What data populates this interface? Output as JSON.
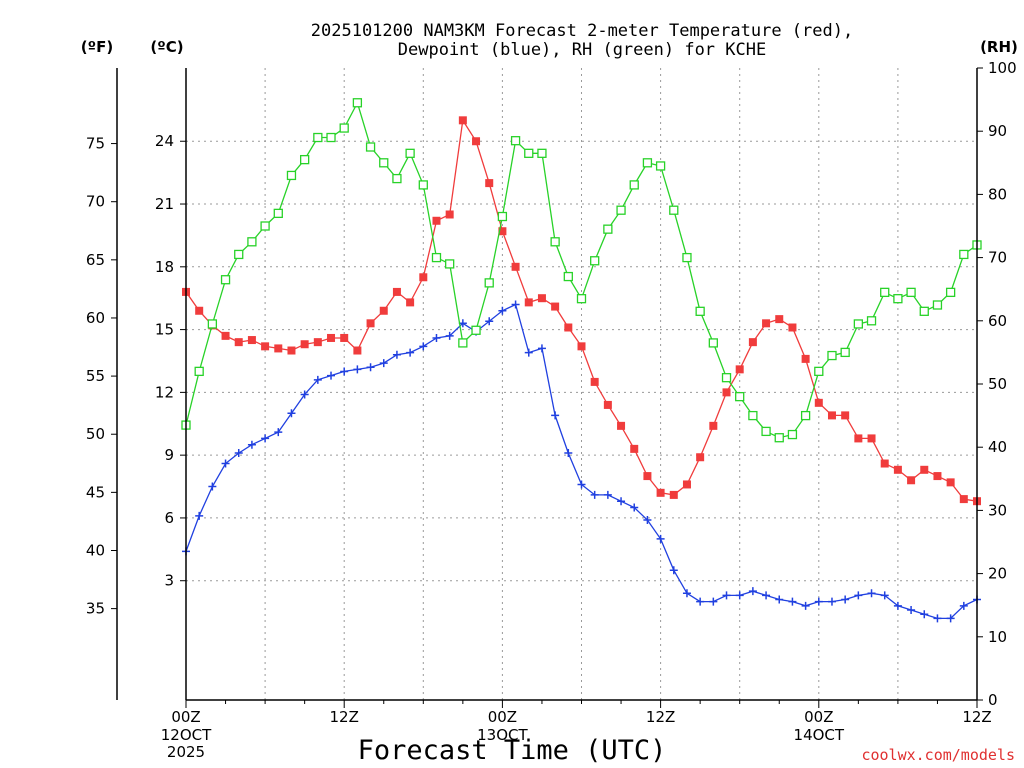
{
  "chart_data": {
    "type": "line",
    "title_line1": "2025101200 NAM3KM Forecast 2-meter Temperature (red),",
    "title_line2": "Dewpoint (blue), RH (green) for KCHE",
    "xlabel": "Forecast Time (UTC)",
    "credit": "coolwx.com/models",
    "units": {
      "fahrenheit": "(ºF)",
      "celsius": "(ºC)",
      "rh": "(RH)"
    },
    "x_forecast_hours": [
      0,
      1,
      2,
      3,
      4,
      5,
      6,
      7,
      8,
      9,
      10,
      11,
      12,
      13,
      14,
      15,
      16,
      17,
      18,
      19,
      20,
      21,
      22,
      23,
      24,
      25,
      26,
      27,
      28,
      29,
      30,
      31,
      32,
      33,
      34,
      35,
      36,
      37,
      38,
      39,
      40,
      41,
      42,
      43,
      44,
      45,
      46,
      47,
      48,
      49,
      50,
      51,
      52,
      53,
      54,
      55,
      56,
      57,
      58,
      59,
      60
    ],
    "xlim": [
      0,
      60
    ],
    "x_ticks": [
      {
        "hour": 0,
        "label": "00Z",
        "sub1": "12OCT",
        "sub2": "2025"
      },
      {
        "hour": 12,
        "label": "12Z",
        "sub1": "",
        "sub2": ""
      },
      {
        "hour": 24,
        "label": "00Z",
        "sub1": "13OCT",
        "sub2": ""
      },
      {
        "hour": 36,
        "label": "12Z",
        "sub1": "",
        "sub2": ""
      },
      {
        "hour": 48,
        "label": "00Z",
        "sub1": "14OCT",
        "sub2": ""
      },
      {
        "hour": 60,
        "label": "12Z",
        "sub1": "",
        "sub2": ""
      }
    ],
    "celsius_axis": {
      "ylim": [
        -2.7,
        27.5
      ],
      "ticks": [
        3,
        6,
        9,
        12,
        15,
        18,
        21,
        24
      ]
    },
    "fahrenheit_ticks": [
      35,
      40,
      45,
      50,
      55,
      60,
      65,
      70,
      75
    ],
    "rh_axis": {
      "ylim": [
        0,
        100
      ],
      "ticks": [
        0,
        10,
        20,
        30,
        40,
        50,
        60,
        70,
        80,
        90,
        100
      ]
    },
    "series": [
      {
        "name": "2-meter Temperature",
        "units": "C",
        "color": "#f03c3c",
        "marker": "filled-square",
        "values": [
          16.8,
          15.9,
          15.2,
          14.7,
          14.4,
          14.5,
          14.2,
          14.1,
          14.0,
          14.3,
          14.4,
          14.6,
          14.6,
          14.0,
          15.3,
          15.9,
          16.8,
          16.3,
          17.5,
          20.2,
          20.5,
          25.0,
          24.0,
          22.0,
          19.7,
          18.0,
          16.3,
          16.5,
          16.1,
          15.1,
          14.2,
          12.5,
          11.4,
          10.4,
          9.3,
          8.0,
          7.2,
          7.1,
          7.6,
          8.9,
          10.4,
          12.0,
          13.1,
          14.4,
          15.3,
          15.5,
          15.1,
          13.6,
          11.5,
          10.9,
          10.9,
          9.8,
          9.8,
          8.6,
          8.3,
          7.8,
          8.3,
          8.0,
          7.7,
          6.9,
          6.8
        ]
      },
      {
        "name": "Dewpoint",
        "units": "C",
        "color": "#2040e0",
        "marker": "plus",
        "values": [
          4.4,
          6.1,
          7.5,
          8.6,
          9.1,
          9.5,
          9.8,
          10.1,
          11.0,
          11.9,
          12.6,
          12.8,
          13.0,
          13.1,
          13.2,
          13.4,
          13.8,
          13.9,
          14.2,
          14.6,
          14.7,
          15.3,
          14.9,
          15.4,
          15.9,
          16.2,
          13.9,
          14.1,
          10.9,
          9.1,
          7.6,
          7.1,
          7.1,
          6.8,
          6.5,
          5.9,
          5.0,
          3.5,
          2.4,
          2.0,
          2.0,
          2.3,
          2.3,
          2.5,
          2.3,
          2.1,
          2.0,
          1.8,
          2.0,
          2.0,
          2.1,
          2.3,
          2.4,
          2.3,
          1.8,
          1.6,
          1.4,
          1.2,
          1.2,
          1.8,
          2.1
        ]
      },
      {
        "name": "Relative Humidity",
        "units": "%",
        "color": "#28d228",
        "marker": "open-square",
        "values": [
          43.5,
          52.0,
          59.5,
          66.5,
          70.5,
          72.5,
          75.0,
          77.0,
          83.0,
          85.5,
          89.0,
          89.0,
          90.5,
          94.5,
          87.5,
          85.0,
          82.5,
          86.5,
          81.5,
          70.0,
          69.0,
          56.5,
          58.5,
          66.0,
          76.5,
          88.5,
          86.5,
          86.5,
          72.5,
          67.0,
          63.5,
          69.5,
          74.5,
          77.5,
          81.5,
          85.0,
          84.5,
          77.5,
          70.0,
          61.5,
          56.5,
          51.0,
          48.0,
          45.0,
          42.5,
          41.5,
          42.0,
          45.0,
          52.0,
          54.5,
          55.0,
          59.5,
          60.0,
          64.5,
          63.5,
          64.5,
          61.5,
          62.5,
          64.5,
          70.5,
          72.0
        ]
      }
    ]
  }
}
